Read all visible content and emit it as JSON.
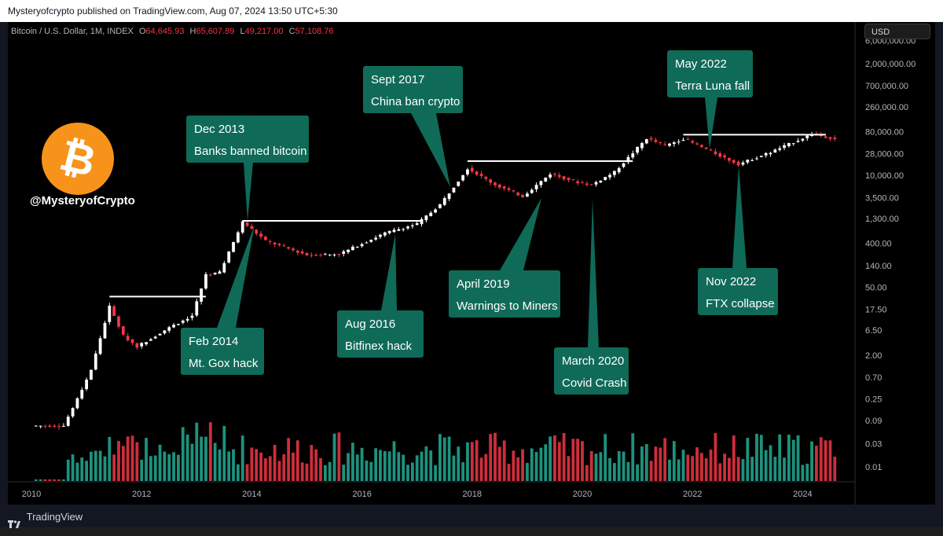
{
  "top_bar": {
    "publisher_text": "Mysteryofcrypto published on TradingView.com, Aug 07, 2024 13:50 UTC+5:30"
  },
  "footer": {
    "brand": "TradingView"
  },
  "legend": {
    "symbol": "Bitcoin / U.S. Dollar, 1M, INDEX",
    "open_label": "O",
    "open": "64,645.93",
    "high_label": "H",
    "high": "65,607.89",
    "low_label": "L",
    "low": "49,217.00",
    "close_label": "C",
    "close": "57,108.76"
  },
  "currency_button": "USD",
  "watermark": {
    "handle": "@MysteryofCrypto",
    "logo_color": "#f7931a"
  },
  "colors": {
    "up": "#ffffff",
    "down": "#f23645",
    "vol_up": "#22ab94",
    "vol_down": "#f23645",
    "annotation_bg": "#106a58",
    "background": "#000000"
  },
  "chart_data": {
    "type": "candlestick",
    "symbol": "Bitcoin / U.S. Dollar",
    "interval": "1M",
    "y_scale": "log",
    "x_ticks": [
      "2010",
      "2012",
      "2014",
      "2016",
      "2018",
      "2020",
      "2022",
      "2024"
    ],
    "y_ticks": [
      "6,000,000.00",
      "2,000,000.00",
      "700,000.00",
      "260,000.00",
      "80,000.00",
      "28,000.00",
      "10,000.00",
      "3,500.00",
      "1,300.00",
      "400.00",
      "140.00",
      "50.00",
      "17.50",
      "6.50",
      "2.00",
      "0.70",
      "0.25",
      "0.09",
      "0.03",
      "0.01"
    ],
    "price_path": [
      {
        "date": "2010-08",
        "price": 0.07
      },
      {
        "date": "2010-11",
        "price": 0.25
      },
      {
        "date": "2011-02",
        "price": 1.0
      },
      {
        "date": "2011-06",
        "price": 20
      },
      {
        "date": "2011-09",
        "price": 5
      },
      {
        "date": "2011-12",
        "price": 3
      },
      {
        "date": "2012-06",
        "price": 6.5
      },
      {
        "date": "2012-12",
        "price": 13
      },
      {
        "date": "2013-03",
        "price": 90
      },
      {
        "date": "2013-06",
        "price": 100
      },
      {
        "date": "2013-11",
        "price": 1100
      },
      {
        "date": "2014-04",
        "price": 450
      },
      {
        "date": "2015-01",
        "price": 230
      },
      {
        "date": "2015-08",
        "price": 240
      },
      {
        "date": "2016-06",
        "price": 650
      },
      {
        "date": "2017-01",
        "price": 1000
      },
      {
        "date": "2017-06",
        "price": 2500
      },
      {
        "date": "2017-12",
        "price": 14000
      },
      {
        "date": "2018-06",
        "price": 6400
      },
      {
        "date": "2018-12",
        "price": 3700
      },
      {
        "date": "2019-06",
        "price": 10800
      },
      {
        "date": "2019-12",
        "price": 7200
      },
      {
        "date": "2020-03",
        "price": 6400
      },
      {
        "date": "2020-08",
        "price": 11700
      },
      {
        "date": "2021-03",
        "price": 58000
      },
      {
        "date": "2021-07",
        "price": 41000
      },
      {
        "date": "2021-11",
        "price": 57000
      },
      {
        "date": "2022-05",
        "price": 31000
      },
      {
        "date": "2022-11",
        "price": 17000
      },
      {
        "date": "2023-06",
        "price": 30000
      },
      {
        "date": "2024-03",
        "price": 71000
      },
      {
        "date": "2024-08",
        "price": 57108.76
      }
    ],
    "resistance_lines": [
      {
        "from": "2011-06",
        "to": "2013-03",
        "price": 32
      },
      {
        "from": "2013-11",
        "to": "2017-02",
        "price": 1160
      },
      {
        "from": "2017-12",
        "to": "2020-12",
        "price": 19700
      },
      {
        "from": "2021-11",
        "to": "2024-06",
        "price": 69000
      }
    ],
    "annotations": [
      {
        "date": "2013-12",
        "lines": [
          "Dec 2013",
          "Banks banned bitcoin"
        ]
      },
      {
        "date": "2014-02",
        "lines": [
          "Feb 2014",
          "Mt. Gox hack"
        ]
      },
      {
        "date": "2016-08",
        "lines": [
          "Aug 2016",
          "Bitfinex hack"
        ]
      },
      {
        "date": "2017-09",
        "lines": [
          "Sept 2017",
          "China ban crypto"
        ]
      },
      {
        "date": "2019-04",
        "lines": [
          "April 2019",
          "Warnings to Miners"
        ]
      },
      {
        "date": "2020-03",
        "lines": [
          "March 2020",
          "Covid Crash"
        ]
      },
      {
        "date": "2022-05",
        "lines": [
          "May 2022",
          "Terra Luna fall"
        ]
      },
      {
        "date": "2022-11",
        "lines": [
          "Nov 2022",
          "FTX collapse"
        ]
      }
    ]
  }
}
